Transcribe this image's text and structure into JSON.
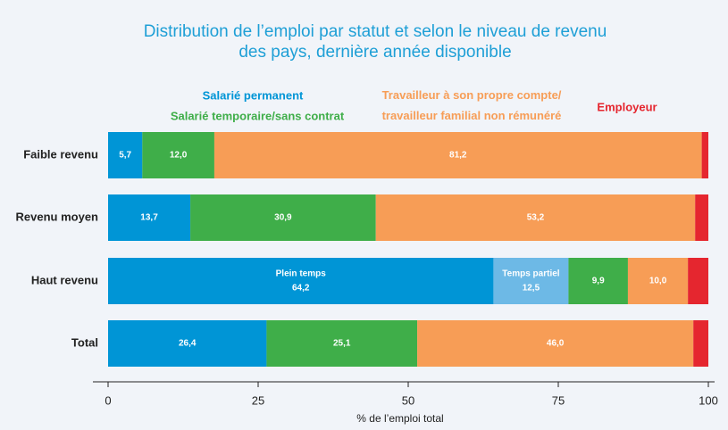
{
  "chart_data": {
    "type": "stacked_barh",
    "title": "Distribution de l’emploi par statut et selon le niveau de revenu\ndes pays, dernière année disponible",
    "xlabel": "% de l’emploi total",
    "categories": [
      "Faible revenu",
      "Revenu moyen",
      "Haut revenu",
      "Total"
    ],
    "series": [
      {
        "name": "Salarié permanent",
        "color": "#0095d6",
        "values": [
          5.7,
          13.7,
          null,
          26.4
        ],
        "value_labels": [
          "5,7",
          "13,7",
          null,
          "26,4"
        ]
      },
      {
        "name": "Plein temps",
        "color": "#0095d6",
        "legend": false,
        "values": [
          null,
          null,
          64.2,
          null
        ],
        "value_labels": [
          null,
          null,
          "64,2",
          null
        ]
      },
      {
        "name": "Temps partiel",
        "color": "#6db9e6",
        "legend": false,
        "values": [
          null,
          null,
          12.5,
          null
        ],
        "value_labels": [
          null,
          null,
          "12,5",
          null
        ]
      },
      {
        "name": "Salarié temporaire/sans contrat",
        "color": "#3fae49",
        "values": [
          12.0,
          30.9,
          9.9,
          25.1
        ],
        "value_labels": [
          "12,0",
          "30,9",
          "9,9",
          "25,1"
        ]
      },
      {
        "name": "Travailleur à son propre compte/\ntravailleur familial non rémunéré",
        "color": "#f79d56",
        "values": [
          81.2,
          53.2,
          10.0,
          46.0
        ],
        "value_labels": [
          "81,2",
          "53,2",
          "10,0",
          "46,0"
        ]
      },
      {
        "name": "Employeur",
        "color": "#e5262f",
        "values": [
          1.1,
          2.2,
          3.4,
          2.5
        ]
      }
    ],
    "xlim": [
      0,
      100
    ],
    "xticks": [
      0,
      25,
      50,
      75,
      100
    ],
    "grid": false
  }
}
